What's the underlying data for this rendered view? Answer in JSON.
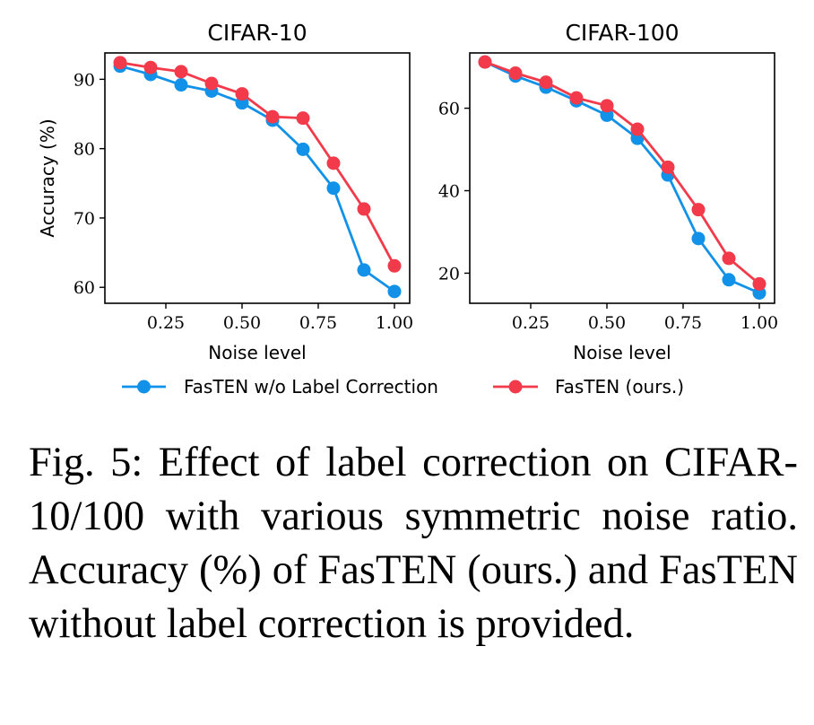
{
  "chart_data": [
    {
      "type": "line",
      "title": "CIFAR-10",
      "xlabel": "Noise level",
      "ylabel": "Accuracy (%)",
      "xlim": [
        0.05,
        1.05
      ],
      "ylim": [
        57.7,
        93.8
      ],
      "xticks": [
        0.25,
        0.5,
        0.75,
        1.0
      ],
      "xtick_labels": [
        "0.25",
        "0.50",
        "0.75",
        "1.00"
      ],
      "yticks": [
        60,
        70,
        80,
        90
      ],
      "ytick_labels": [
        "60",
        "70",
        "80",
        "90"
      ],
      "x": [
        0.1,
        0.2,
        0.3,
        0.4,
        0.5,
        0.6,
        0.7,
        0.8,
        0.9,
        1.0
      ],
      "series": [
        {
          "name": "FasTEN w/o Label Correction",
          "color": "#1192e8",
          "values": [
            91.9,
            90.7,
            89.2,
            88.3,
            86.6,
            84.1,
            79.9,
            74.3,
            62.5,
            59.4
          ]
        },
        {
          "name": "FasTEN (ours.)",
          "color": "#f23a4a",
          "values": [
            92.4,
            91.7,
            91.1,
            89.4,
            87.9,
            84.6,
            84.4,
            77.9,
            71.3,
            63.1
          ]
        }
      ]
    },
    {
      "type": "line",
      "title": "CIFAR-100",
      "xlabel": "Noise level",
      "ylabel": "",
      "xlim": [
        0.05,
        1.05
      ],
      "ylim": [
        12.7,
        73.4
      ],
      "xticks": [
        0.25,
        0.5,
        0.75,
        1.0
      ],
      "xtick_labels": [
        "0.25",
        "0.50",
        "0.75",
        "1.00"
      ],
      "yticks": [
        20,
        40,
        60
      ],
      "ytick_labels": [
        "20",
        "40",
        "60"
      ],
      "x": [
        0.1,
        0.2,
        0.3,
        0.4,
        0.5,
        0.6,
        0.7,
        0.8,
        0.9,
        1.0
      ],
      "series": [
        {
          "name": "FasTEN w/o Label Correction",
          "color": "#1192e8",
          "values": [
            71.2,
            67.8,
            65.1,
            61.8,
            58.3,
            52.7,
            43.8,
            28.4,
            18.4,
            15.2
          ]
        },
        {
          "name": "FasTEN (ours.)",
          "color": "#f23a4a",
          "values": [
            71.2,
            68.5,
            66.3,
            62.5,
            60.6,
            54.9,
            45.7,
            35.4,
            23.6,
            17.4
          ]
        }
      ]
    }
  ],
  "legend": {
    "placement": "bottom-center",
    "entries": [
      {
        "label": "FasTEN w/o Label Correction",
        "color": "#1192e8"
      },
      {
        "label": "FasTEN (ours.)",
        "color": "#f23a4a"
      }
    ]
  },
  "caption": "Fig. 5: Effect of label correction on CIFAR-10/100 with various symmetric noise ratio. Accuracy (%) of FasTEN (ours.) and FasTEN without label correction is provided."
}
